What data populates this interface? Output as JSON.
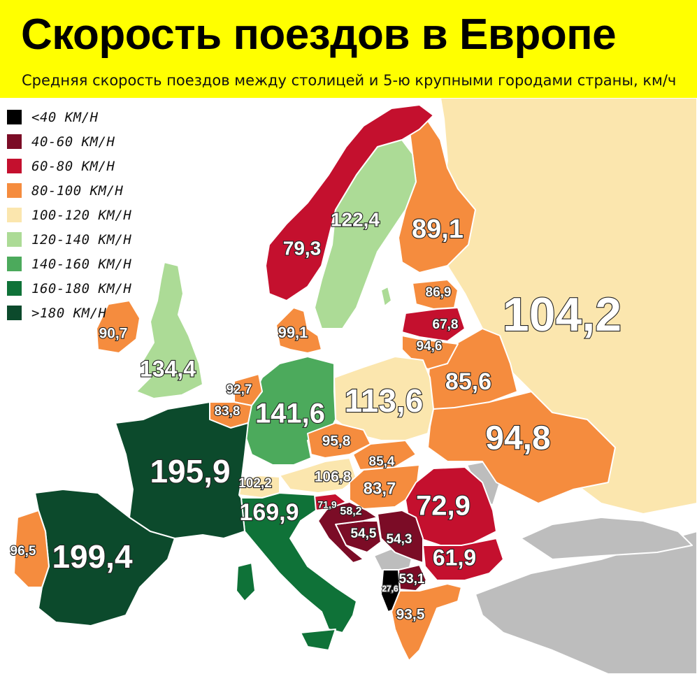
{
  "header": {
    "title": "Скорость поездов в Европе",
    "subtitle": "Средняя скорость поездов между столицей и 5-ю крупными городами страны, км/ч"
  },
  "legend": [
    {
      "label": "<40 KM/H",
      "color": "#000000"
    },
    {
      "label": "40-60 KM/H",
      "color": "#7b0c26"
    },
    {
      "label": "60-80 KM/H",
      "color": "#c4102e"
    },
    {
      "label": "80-100 KM/H",
      "color": "#f58c3e"
    },
    {
      "label": "100-120 KM/H",
      "color": "#fbe6ae"
    },
    {
      "label": "120-140 KM/H",
      "color": "#acdb96"
    },
    {
      "label": "140-160 KM/H",
      "color": "#4caa5c"
    },
    {
      "label": "160-180 KM/H",
      "color": "#0f7238"
    },
    {
      "label": ">180 KM/H",
      "color": "#0c4a2c"
    }
  ],
  "no_data_color": "#bdbdbd",
  "speeds": {
    "france": "195,9",
    "spain": "199,4",
    "portugal": "96,5",
    "uk": "134,4",
    "ireland": "90,7",
    "norway": "79,3",
    "sweden": "122,4",
    "finland": "89,1",
    "estonia": "86,9",
    "latvia": "67,8",
    "lithuania": "94,6",
    "belarus": "85,6",
    "russia": "104,2",
    "ukraine": "94,8",
    "poland": "113,6",
    "germany": "141,6",
    "denmark": "99,1",
    "netherlands": "92,7",
    "belgium": "83,8",
    "czechia": "95,8",
    "slovakia": "85,4",
    "austria": "106,8",
    "switzerland": "102,2",
    "hungary": "83,7",
    "italy": "169,9",
    "slovenia": "71,9",
    "croatia": "58,2",
    "bosnia": "54,5",
    "serbia": "54,3",
    "romania": "72,9",
    "bulgaria": "61,9",
    "north_macedonia": "53,1",
    "albania": "27,6",
    "greece": "93,5"
  }
}
